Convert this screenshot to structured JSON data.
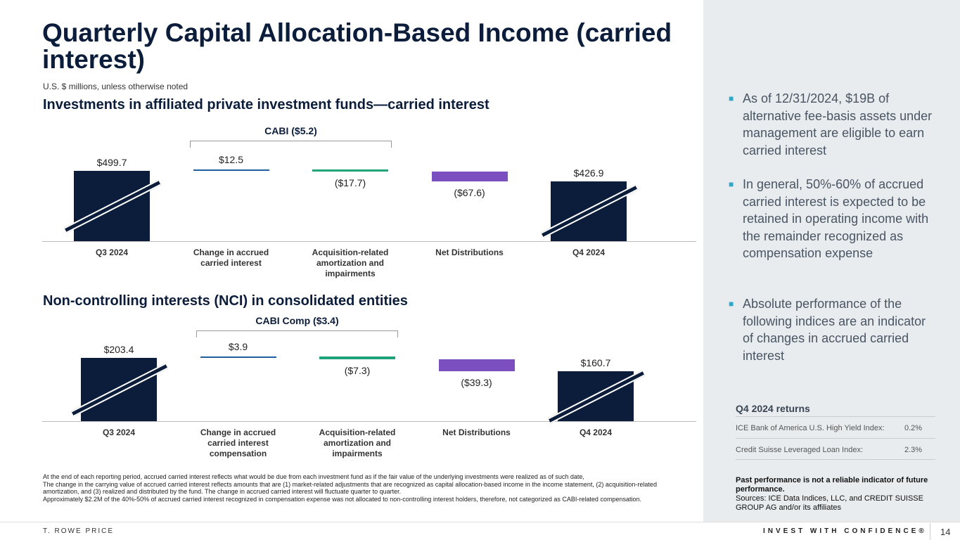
{
  "title": "Quarterly Capital Allocation-Based Income (carried interest)",
  "subtitle": "U.S. $ millions, unless otherwise noted",
  "colors": {
    "navy": "#0b1d3a",
    "blue": "#1f5f9e",
    "green": "#1fa37a",
    "purple": "#7b4fc0",
    "panel": "#e9ecef"
  },
  "chart_data": [
    {
      "type": "bar",
      "subtype": "waterfall",
      "title": "Investments in affiliated private investment funds—carried interest",
      "bracket_label": "CABI  ($5.2)",
      "categories": [
        "Q3 2024",
        "Change in accrued carried interest",
        "Acquisition-related amortization and impairments",
        "Net Distributions",
        "Q4 2024"
      ],
      "values": [
        499.7,
        12.5,
        -17.7,
        -67.6,
        426.9
      ],
      "labels": [
        "$499.7",
        "$12.5",
        "($17.7)",
        "($67.6)",
        "$426.9"
      ],
      "kinds": [
        "total",
        "delta",
        "delta",
        "delta",
        "total"
      ]
    },
    {
      "type": "bar",
      "subtype": "waterfall",
      "title": "Non-controlling interests (NCI) in consolidated entities",
      "bracket_label": "CABI Comp ($3.4)",
      "categories": [
        "Q3 2024",
        "Change in accrued carried interest compensation",
        "Acquisition-related amortization and impairments",
        "Net Distributions",
        "Q4 2024"
      ],
      "values": [
        203.4,
        3.9,
        -7.3,
        -39.3,
        160.7
      ],
      "labels": [
        "$203.4",
        "$3.9",
        "($7.3)",
        "($39.3)",
        "$160.7"
      ],
      "kinds": [
        "total",
        "delta",
        "delta",
        "delta",
        "total"
      ]
    }
  ],
  "footnote": [
    "At the end of each reporting period, accrued carried interest reflects what would be due from each investment fund as if the fair value of the underlying investments were realized as of such date,",
    "The change in the carrying value of accrued carried interest reflects amounts that are (1) market-related adjustments that are recognized as capital allocation-based income in the income statement, (2) acquisition-related amortization, and (3) realized and distributed by the fund.  The change in accrued carried interest will fluctuate quarter to quarter.",
    "Approximately $2.2M of the 40%-50% of accrued carried interest recognized in compensation expense was not allocated to non-controlling interest holders, therefore, not categorized as CABI-related compensation."
  ],
  "bullets": [
    "As of 12/31/2024, $19B of alternative fee-basis assets under management are eligible to earn carried interest",
    "In general, 50%-60% of accrued carried interest is expected to be retained in operating income with the remainder recognized as compensation expense",
    "Absolute performance of the following indices are an indicator of changes in accrued carried interest"
  ],
  "returns": {
    "heading": "Q4 2024 returns",
    "rows": [
      {
        "label": "ICE Bank of America U.S. High Yield Index:",
        "value": "0.2%"
      },
      {
        "label": "Credit Suisse Leveraged Loan Index:",
        "value": "2.3%"
      }
    ]
  },
  "disclaimer_bold": "Past performance is not a reliable indicator of future performance.",
  "sources": "Sources: ICE Data Indices, LLC, and CREDIT SUISSE GROUP AG and/or its affiliates",
  "brand": "T. ROWE PRICE",
  "tagline": "INVEST WITH CONFIDENCE®",
  "page": "14"
}
